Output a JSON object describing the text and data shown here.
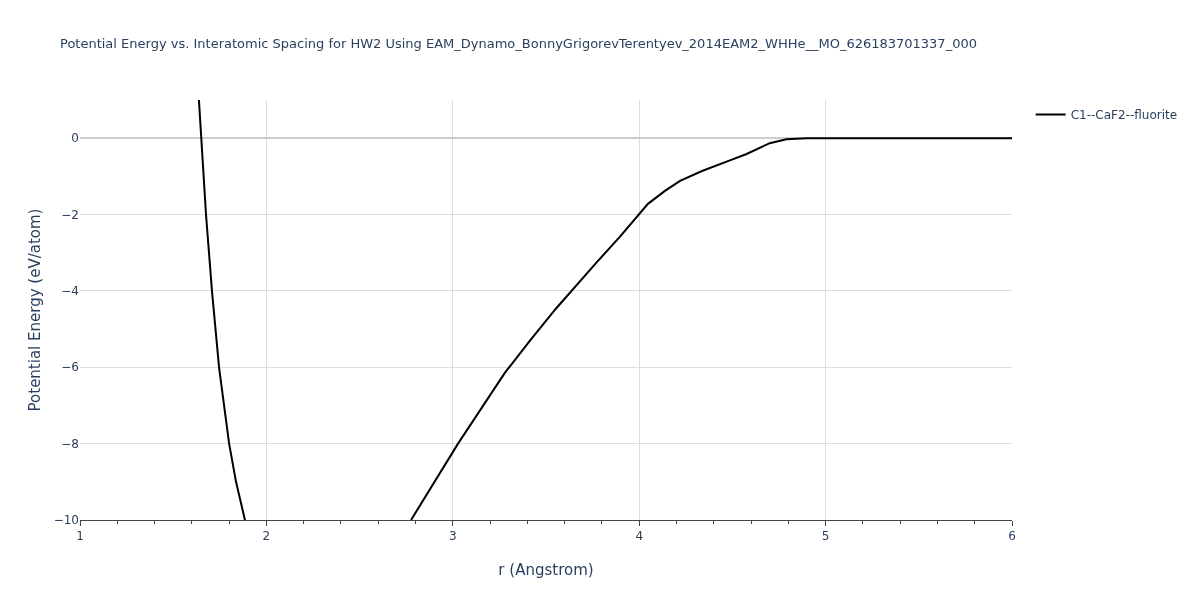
{
  "chart_data": {
    "type": "line",
    "title": "Potential Energy vs. Interatomic Spacing for HW2 Using EAM_Dynamo_BonnyGrigorevTerentyev_2014EAM2_WHHe__MO_626183701337_000",
    "xlabel": "r (Angstrom)",
    "ylabel": "Potential Energy (eV/atom)",
    "series": [
      {
        "name": "C1--CaF2--fluorite",
        "color": "#000000",
        "x": [
          1.638,
          1.676,
          1.708,
          1.746,
          1.8,
          1.837,
          1.885,
          null,
          2.776,
          3.028,
          3.28,
          3.414,
          3.554,
          3.774,
          3.897,
          4.047,
          4.138,
          4.219,
          4.337,
          4.476,
          4.573,
          4.7,
          4.79,
          4.9,
          5.5,
          6
        ],
        "values": [
          1,
          -2,
          -4,
          -6,
          -8,
          -9,
          -10,
          null,
          -10,
          -8,
          -6.14,
          -5.3,
          -4.46,
          -3.24,
          -2.58,
          -1.72,
          -1.38,
          -1.12,
          -0.86,
          -0.6,
          -0.42,
          -0.13,
          -0.03,
          0,
          0,
          0
        ]
      }
    ],
    "xlim": [
      1,
      6
    ],
    "ylim": [
      -10,
      1
    ],
    "xticks": [
      1,
      {
        "value": 1.2,
        "label": null
      },
      {
        "value": 1.4,
        "label": null
      },
      {
        "value": 1.6,
        "label": null
      },
      {
        "value": 1.8,
        "label": null
      },
      2,
      {
        "value": 2.2,
        "label": null
      },
      {
        "value": 2.4,
        "label": null
      },
      {
        "value": 2.6,
        "label": null
      },
      {
        "value": 2.8,
        "label": null
      },
      3,
      {
        "value": 3.2,
        "label": null
      },
      {
        "value": 3.4,
        "label": null
      },
      {
        "value": 3.6,
        "label": null
      },
      {
        "value": 3.8,
        "label": null
      },
      4,
      {
        "value": 4.2,
        "label": null
      },
      {
        "value": 4.4,
        "label": null
      },
      {
        "value": 4.6,
        "label": null
      },
      {
        "value": 4.8,
        "label": null
      },
      5,
      {
        "value": 5.2,
        "label": null
      },
      {
        "value": 5.4,
        "label": null
      },
      {
        "value": 5.6,
        "label": null
      },
      {
        "value": 5.8,
        "label": null
      },
      6
    ],
    "yticks": [
      {
        "value": -10,
        "label": "−10"
      },
      {
        "value": -8,
        "label": "−8"
      },
      {
        "value": -6,
        "label": "−6"
      },
      {
        "value": -4,
        "label": "−4"
      },
      {
        "value": -2,
        "label": "−2"
      },
      0
    ],
    "grid": true,
    "legend": "top right",
    "marker": "none",
    "line_style": "solid"
  }
}
